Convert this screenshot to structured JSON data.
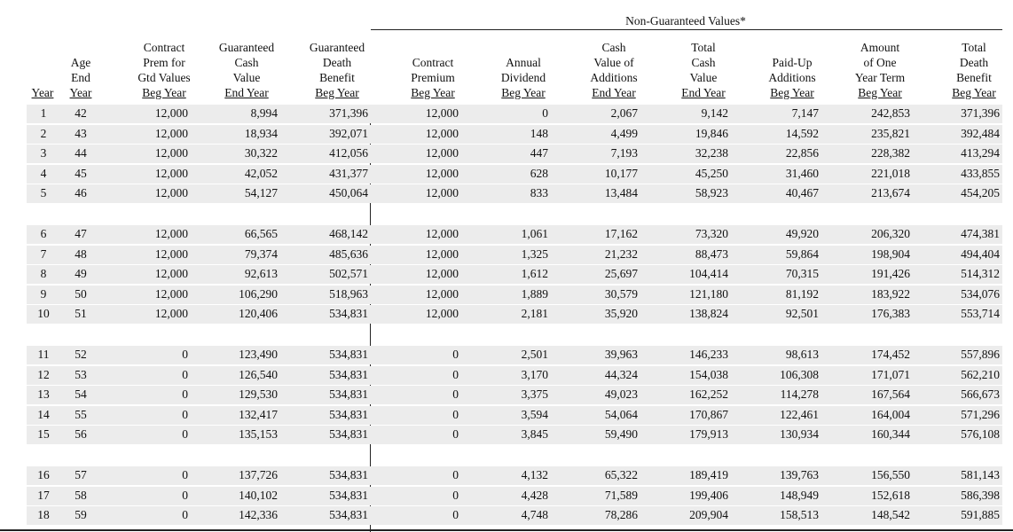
{
  "table": {
    "group_title": "Non-Guaranteed Values*",
    "headers": [
      [
        "Year"
      ],
      [
        "Age",
        "End",
        "Year"
      ],
      [
        "Contract",
        "Prem for",
        "Gtd Values",
        "Beg Year"
      ],
      [
        "Guaranteed",
        "Cash",
        "Value",
        "End Year"
      ],
      [
        "Guaranteed",
        "Death",
        "Benefit",
        "Beg Year"
      ],
      [
        "Contract",
        "Premium",
        "Beg Year"
      ],
      [
        "Annual",
        "Dividend",
        "Beg Year"
      ],
      [
        "Cash",
        "Value of",
        "Additions",
        "End Year"
      ],
      [
        "Total",
        "Cash",
        "Value",
        "End Year"
      ],
      [
        "Paid-Up",
        "Additions",
        "Beg Year"
      ],
      [
        "Amount",
        "of One",
        "Year Term",
        "Beg Year"
      ],
      [
        "Total",
        "Death",
        "Benefit",
        "Beg Year"
      ]
    ],
    "groups": [
      [
        [
          "1",
          "42",
          "12,000",
          "8,994",
          "371,396",
          "12,000",
          "0",
          "2,067",
          "9,142",
          "7,147",
          "242,853",
          "371,396"
        ],
        [
          "2",
          "43",
          "12,000",
          "18,934",
          "392,071",
          "12,000",
          "148",
          "4,499",
          "19,846",
          "14,592",
          "235,821",
          "392,484"
        ],
        [
          "3",
          "44",
          "12,000",
          "30,322",
          "412,056",
          "12,000",
          "447",
          "7,193",
          "32,238",
          "22,856",
          "228,382",
          "413,294"
        ],
        [
          "4",
          "45",
          "12,000",
          "42,052",
          "431,377",
          "12,000",
          "628",
          "10,177",
          "45,250",
          "31,460",
          "221,018",
          "433,855"
        ],
        [
          "5",
          "46",
          "12,000",
          "54,127",
          "450,064",
          "12,000",
          "833",
          "13,484",
          "58,923",
          "40,467",
          "213,674",
          "454,205"
        ]
      ],
      [
        [
          "6",
          "47",
          "12,000",
          "66,565",
          "468,142",
          "12,000",
          "1,061",
          "17,162",
          "73,320",
          "49,920",
          "206,320",
          "474,381"
        ],
        [
          "7",
          "48",
          "12,000",
          "79,374",
          "485,636",
          "12,000",
          "1,325",
          "21,232",
          "88,473",
          "59,864",
          "198,904",
          "494,404"
        ],
        [
          "8",
          "49",
          "12,000",
          "92,613",
          "502,571",
          "12,000",
          "1,612",
          "25,697",
          "104,414",
          "70,315",
          "191,426",
          "514,312"
        ],
        [
          "9",
          "50",
          "12,000",
          "106,290",
          "518,963",
          "12,000",
          "1,889",
          "30,579",
          "121,180",
          "81,192",
          "183,922",
          "534,076"
        ],
        [
          "10",
          "51",
          "12,000",
          "120,406",
          "534,831",
          "12,000",
          "2,181",
          "35,920",
          "138,824",
          "92,501",
          "176,383",
          "553,714"
        ]
      ],
      [
        [
          "11",
          "52",
          "0",
          "123,490",
          "534,831",
          "0",
          "2,501",
          "39,963",
          "146,233",
          "98,613",
          "174,452",
          "557,896"
        ],
        [
          "12",
          "53",
          "0",
          "126,540",
          "534,831",
          "0",
          "3,170",
          "44,324",
          "154,038",
          "106,308",
          "171,071",
          "562,210"
        ],
        [
          "13",
          "54",
          "0",
          "129,530",
          "534,831",
          "0",
          "3,375",
          "49,023",
          "162,252",
          "114,278",
          "167,564",
          "566,673"
        ],
        [
          "14",
          "55",
          "0",
          "132,417",
          "534,831",
          "0",
          "3,594",
          "54,064",
          "170,867",
          "122,461",
          "164,004",
          "571,296"
        ],
        [
          "15",
          "56",
          "0",
          "135,153",
          "534,831",
          "0",
          "3,845",
          "59,490",
          "179,913",
          "130,934",
          "160,344",
          "576,108"
        ]
      ],
      [
        [
          "16",
          "57",
          "0",
          "137,726",
          "534,831",
          "0",
          "4,132",
          "65,322",
          "189,419",
          "139,763",
          "156,550",
          "581,143"
        ],
        [
          "17",
          "58",
          "0",
          "140,102",
          "534,831",
          "0",
          "4,428",
          "71,589",
          "199,406",
          "148,949",
          "152,618",
          "586,398"
        ],
        [
          "18",
          "59",
          "0",
          "142,336",
          "534,831",
          "0",
          "4,748",
          "78,286",
          "209,904",
          "158,513",
          "148,542",
          "591,885"
        ]
      ]
    ]
  }
}
